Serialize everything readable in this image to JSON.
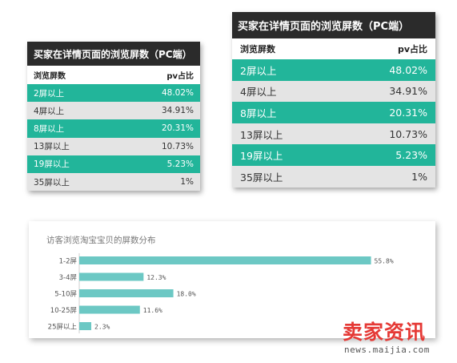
{
  "small_table": {
    "title": "买家在详情页面的浏览屏数（PC端）",
    "header": {
      "col1": "浏览屏数",
      "col2": "pv占比"
    },
    "rows": [
      {
        "label": "2屏以上",
        "value": "48.02%"
      },
      {
        "label": "4屏以上",
        "value": "34.91%"
      },
      {
        "label": "8屏以上",
        "value": "20.31%"
      },
      {
        "label": "13屏以上",
        "value": "10.73%"
      },
      {
        "label": "19屏以上",
        "value": "5.23%"
      },
      {
        "label": "35屏以上",
        "value": "1%"
      }
    ]
  },
  "large_table": {
    "title": "买家在详情页面的浏览屏数（PC端）",
    "header": {
      "col1": "浏览屏数",
      "col2": "pv占比"
    },
    "rows": [
      {
        "label": "2屏以上",
        "value": "48.02%"
      },
      {
        "label": "4屏以上",
        "value": "34.91%"
      },
      {
        "label": "8屏以上",
        "value": "20.31%"
      },
      {
        "label": "13屏以上",
        "value": "10.73%"
      },
      {
        "label": "19屏以上",
        "value": "5.23%"
      },
      {
        "label": "35屏以上",
        "value": "1%"
      }
    ]
  },
  "colors": {
    "teal_row": "#22b59a",
    "gray_row": "#e4e4e4",
    "title_bar": "#2b2b2b",
    "bar": "#6cc8c4",
    "watermark": "#e53935"
  },
  "chart_data": {
    "type": "bar",
    "orientation": "horizontal",
    "title": "访客浏览淘宝宝贝的屏数分布",
    "categories": [
      "1-2屏",
      "3-4屏",
      "5-10屏",
      "10-25屏",
      "25屏以上"
    ],
    "values": [
      55.8,
      12.3,
      18.0,
      11.6,
      2.3
    ],
    "value_labels": [
      "55.8%",
      "12.3%",
      "18.0%",
      "11.6%",
      "2.3%"
    ],
    "xlim": [
      0,
      60
    ],
    "grid": false,
    "legend": "none"
  },
  "watermark": {
    "main": "卖家资讯",
    "sub": "news.maijia.com"
  }
}
